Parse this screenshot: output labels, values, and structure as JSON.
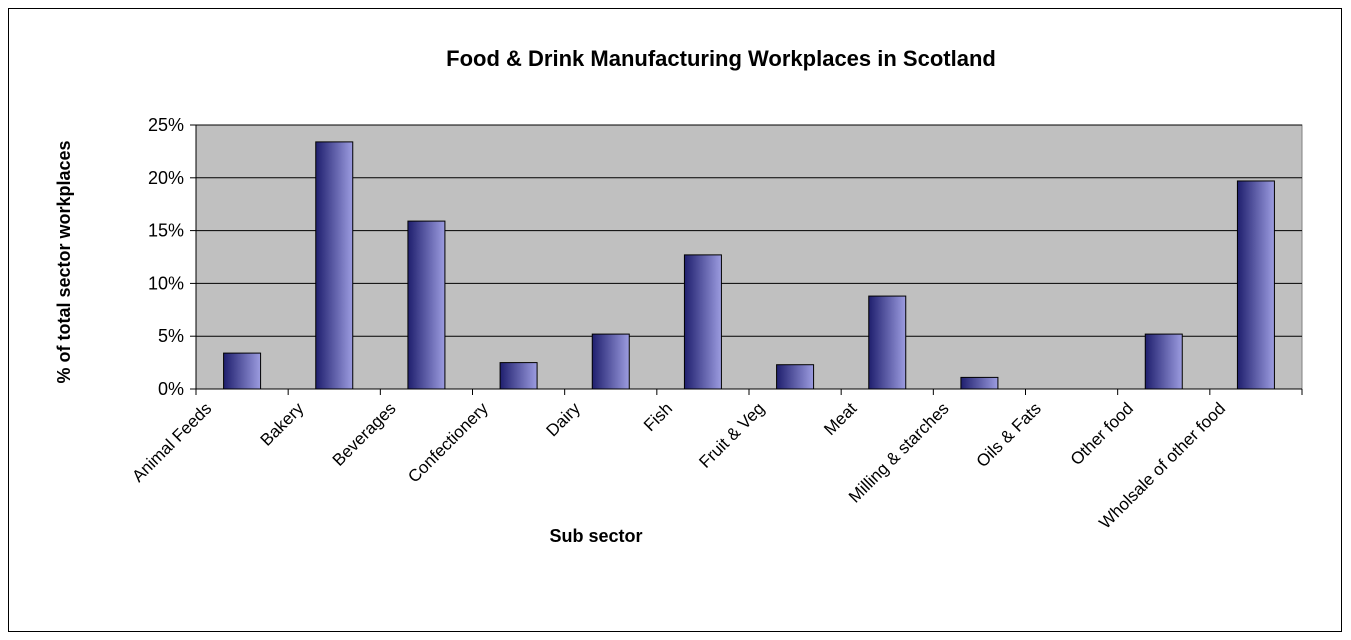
{
  "chart_data": {
    "type": "bar",
    "title": "Food & Drink Manufacturing Workplaces in Scotland",
    "xlabel": "Sub sector",
    "ylabel": "% of total sector workplaces",
    "categories": [
      "Animal Feeds",
      "Bakery",
      "Beverages",
      "Confectionery",
      "Dairy",
      "Fish",
      "Fruit & Veg",
      "Meat",
      "Milling & starches",
      "Oils & Fats",
      "Other food",
      "Wholsale of other food"
    ],
    "values": [
      3.4,
      23.4,
      15.9,
      2.5,
      5.2,
      12.7,
      2.3,
      8.8,
      1.1,
      0.0,
      5.2,
      19.7
    ],
    "yticks": [
      "0%",
      "5%",
      "10%",
      "15%",
      "20%",
      "25%"
    ],
    "ylim": [
      0,
      25
    ],
    "grid": true,
    "legend": "none",
    "colors": {
      "plot_bg": "#C0C0C0",
      "bar_dark": "#1F1F6E",
      "bar_light": "#9C9CE0",
      "bar_border": "#000000"
    }
  }
}
